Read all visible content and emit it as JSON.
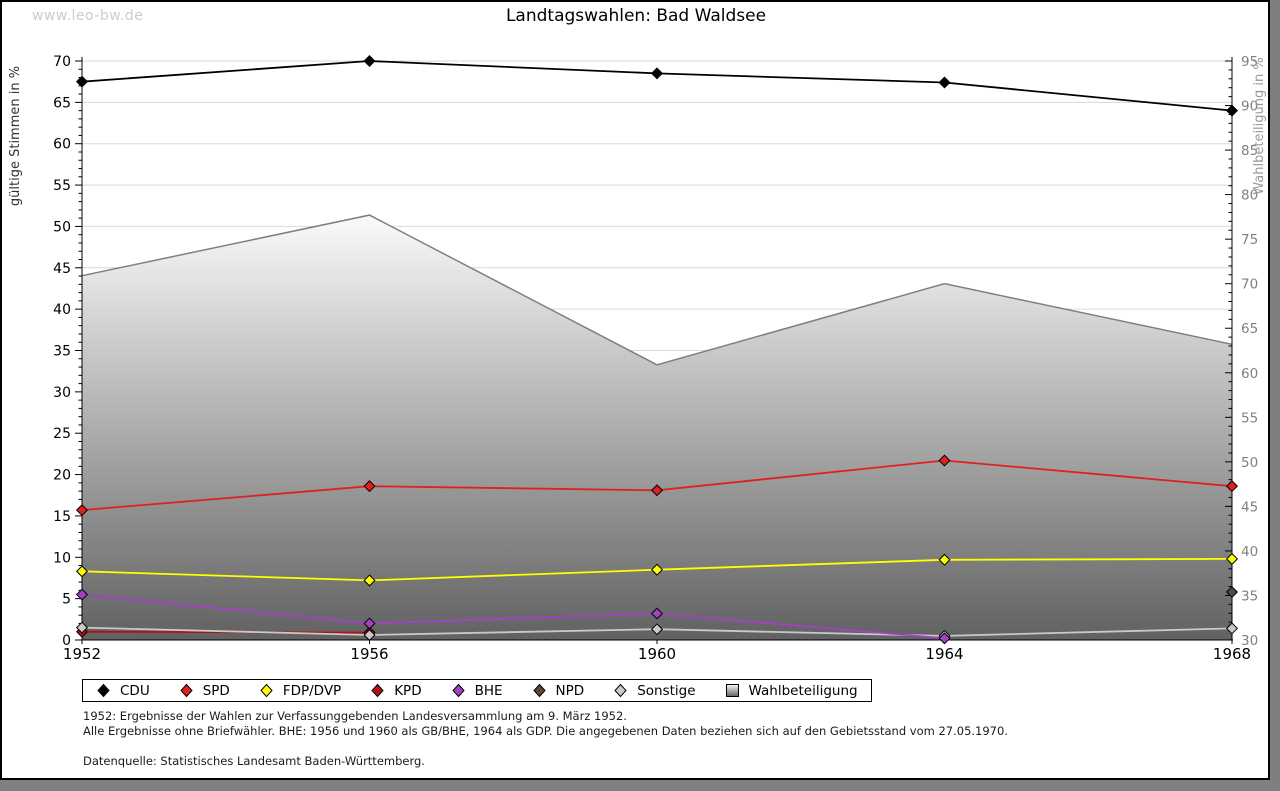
{
  "watermark": "www.leo-bw.de",
  "title": "Landtagswahlen: Bad Waldsee",
  "footnotes": {
    "line1": "1952: Ergebnisse der Wahlen zur Verfassunggebenden Landesversammlung am 9. März 1952.",
    "line2": "Alle Ergebnisse ohne Briefwähler. BHE: 1956 und 1960 als GB/BHE, 1964 als GDP. Die angegebenen Daten beziehen sich auf den Gebietsstand vom 27.05.1970.",
    "source": "Datenquelle: Statistisches Landesamt Baden-Württemberg."
  },
  "chart_data": {
    "type": "line",
    "title": "Landtagswahlen: Bad Waldsee",
    "x": [
      1952,
      1956,
      1960,
      1964,
      1968
    ],
    "left_axis": {
      "label": "gültige Stimmen in %",
      "min": 0,
      "max": 70,
      "major_tick": 5,
      "minor_tick": 1,
      "label_color": "#333333",
      "tick_label_color": "#000000"
    },
    "right_axis": {
      "label": "Wahlbeteiligung in %",
      "min": 30,
      "max": 95,
      "major_tick": 5,
      "minor_tick": 1,
      "label_color": "#999999",
      "tick_label_color": "#808080"
    },
    "grid": {
      "horizontal": true,
      "interval": 5,
      "color": "#d9d9d9"
    },
    "legend_position": "bottom",
    "series": [
      {
        "name": "CDU",
        "axis": "left",
        "type": "line",
        "marker": "diamond",
        "color": "#000000",
        "values": [
          67.5,
          70.0,
          68.5,
          67.4,
          64.0
        ]
      },
      {
        "name": "SPD",
        "axis": "left",
        "type": "line",
        "marker": "diamond",
        "color": "#e02020",
        "values": [
          15.7,
          18.6,
          18.1,
          21.7,
          18.6
        ]
      },
      {
        "name": "FDP/DVP",
        "axis": "left",
        "type": "line",
        "marker": "diamond",
        "color": "#ffff00",
        "values": [
          8.3,
          7.2,
          8.5,
          9.7,
          9.8
        ]
      },
      {
        "name": "KPD",
        "axis": "left",
        "type": "line",
        "marker": "diamond",
        "color": "#b21212",
        "values": [
          1.0,
          0.9,
          null,
          null,
          null
        ]
      },
      {
        "name": "BHE",
        "axis": "left",
        "type": "line",
        "marker": "diamond",
        "color": "#a341c5",
        "values": [
          5.5,
          2.0,
          3.2,
          0.2,
          null
        ]
      },
      {
        "name": "NPD",
        "axis": "left",
        "type": "line",
        "marker": "diamond",
        "color": "#5e4634",
        "values": [
          null,
          null,
          null,
          null,
          5.8
        ]
      },
      {
        "name": "Sonstige",
        "axis": "left",
        "type": "line",
        "marker": "diamond",
        "color": "#c9c9c9",
        "values": [
          1.5,
          0.6,
          1.3,
          0.5,
          1.4
        ]
      },
      {
        "name": "Wahlbeteiligung",
        "axis": "right",
        "type": "area",
        "marker": "square",
        "fill_top": "#fafafa",
        "fill_bottom": "#616161",
        "stroke": "#7f7f7f",
        "values": [
          70.9,
          77.7,
          60.9,
          70.0,
          63.2
        ]
      }
    ]
  }
}
